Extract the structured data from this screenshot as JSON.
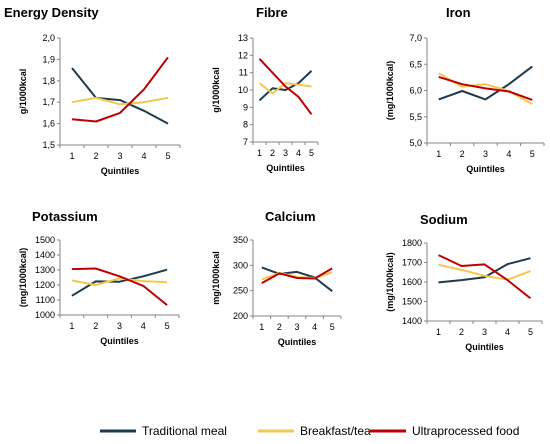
{
  "legend": {
    "items": [
      {
        "label": "Traditional meal",
        "color": "#1f3a4d"
      },
      {
        "label": "Breakfast/tea",
        "color": "#f4c850"
      },
      {
        "label": "Ultraprocessed food",
        "color": "#c00000"
      }
    ]
  },
  "chart_data": [
    {
      "type": "line",
      "title": "Energy Density",
      "xlabel": "Quintiles",
      "ylabel": "g/1000kcal",
      "categories": [
        "1",
        "2",
        "3",
        "4",
        "5"
      ],
      "ylim": [
        1.5,
        2.0
      ],
      "yticks": [
        "1,5",
        "1,6",
        "1,7",
        "1,8",
        "1,9",
        "2,0"
      ],
      "series": [
        {
          "name": "Traditional meal",
          "values": [
            1.86,
            1.72,
            1.71,
            1.66,
            1.6
          ]
        },
        {
          "name": "Breakfast/tea",
          "values": [
            1.7,
            1.72,
            1.69,
            1.7,
            1.72
          ]
        },
        {
          "name": "Ultraprocessed food",
          "values": [
            1.62,
            1.61,
            1.65,
            1.76,
            1.91
          ]
        }
      ]
    },
    {
      "type": "line",
      "title": "Fibre",
      "xlabel": "Quintiles",
      "ylabel": "g/1000kcal",
      "categories": [
        "1",
        "2",
        "3",
        "4",
        "5"
      ],
      "ylim": [
        7,
        13
      ],
      "yticks": [
        "7",
        "8",
        "9",
        "10",
        "11",
        "12",
        "13"
      ],
      "series": [
        {
          "name": "Traditional meal",
          "values": [
            9.4,
            10.1,
            10.0,
            10.4,
            11.1
          ]
        },
        {
          "name": "Breakfast/tea",
          "values": [
            10.4,
            9.8,
            10.4,
            10.3,
            10.2
          ]
        },
        {
          "name": "Ultraprocessed food",
          "values": [
            11.8,
            11.0,
            10.2,
            9.6,
            8.6
          ]
        }
      ]
    },
    {
      "type": "line",
      "title": "Iron",
      "xlabel": "Quintiles",
      "ylabel": "(mg/1000kcal)",
      "categories": [
        "1",
        "2",
        "3",
        "4",
        "5"
      ],
      "ylim": [
        5.0,
        7.0
      ],
      "yticks": [
        "5,0",
        "5,5",
        "6,0",
        "6,5",
        "7,0"
      ],
      "series": [
        {
          "name": "Traditional meal",
          "values": [
            5.83,
            5.99,
            5.83,
            6.12,
            6.46
          ]
        },
        {
          "name": "Breakfast/tea",
          "values": [
            6.33,
            6.07,
            6.12,
            5.99,
            5.74
          ]
        },
        {
          "name": "Ultraprocessed food",
          "values": [
            6.26,
            6.12,
            6.04,
            5.98,
            5.82
          ]
        }
      ]
    },
    {
      "type": "line",
      "title": "Potassium",
      "xlabel": "Quintiles",
      "ylabel": "(mg/1000kcal)",
      "categories": [
        "1",
        "2",
        "3",
        "4",
        "5"
      ],
      "ylim": [
        1000,
        1500
      ],
      "yticks": [
        "1000",
        "1100",
        "1200",
        "1300",
        "1400",
        "1500"
      ],
      "series": [
        {
          "name": "Traditional meal",
          "values": [
            1128,
            1224,
            1222,
            1258,
            1302
          ]
        },
        {
          "name": "Breakfast/tea",
          "values": [
            1230,
            1200,
            1244,
            1226,
            1218
          ]
        },
        {
          "name": "Ultraprocessed food",
          "values": [
            1306,
            1310,
            1258,
            1194,
            1066
          ]
        }
      ]
    },
    {
      "type": "line",
      "title": "Calcium",
      "xlabel": "Quintiles",
      "ylabel": "mg/1000kcal",
      "categories": [
        "1",
        "2",
        "3",
        "4",
        "5"
      ],
      "ylim": [
        200,
        350
      ],
      "yticks": [
        "200",
        "250",
        "300",
        "350"
      ],
      "series": [
        {
          "name": "Traditional meal",
          "values": [
            296,
            283,
            287,
            276,
            249
          ]
        },
        {
          "name": "Breakfast/tea",
          "values": [
            272,
            285,
            277,
            275,
            286
          ]
        },
        {
          "name": "Ultraprocessed food",
          "values": [
            265,
            284,
            275,
            274,
            294
          ]
        }
      ]
    },
    {
      "type": "line",
      "title": "Sodium",
      "xlabel": "Quintiles",
      "ylabel": "(mg/1000kcal)",
      "categories": [
        "1",
        "2",
        "3",
        "4",
        "5"
      ],
      "ylim": [
        1400,
        1800
      ],
      "yticks": [
        "1400",
        "1500",
        "1600",
        "1700",
        "1800"
      ],
      "series": [
        {
          "name": "Traditional meal",
          "values": [
            1598,
            1610,
            1624,
            1692,
            1722
          ]
        },
        {
          "name": "Breakfast/tea",
          "values": [
            1688,
            1662,
            1632,
            1612,
            1656
          ]
        },
        {
          "name": "Ultraprocessed food",
          "values": [
            1738,
            1682,
            1690,
            1610,
            1516
          ]
        }
      ]
    }
  ]
}
